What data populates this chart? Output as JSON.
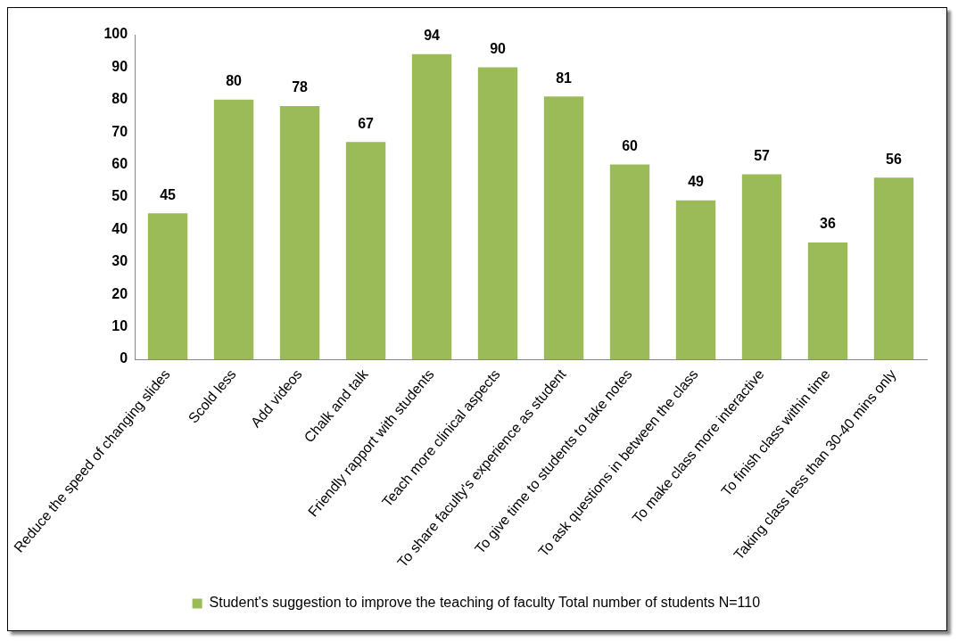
{
  "chart_data": {
    "type": "bar",
    "categories": [
      "Reduce the speed of changing slides",
      "Scold less",
      "Add videos",
      "Chalk and talk",
      "Friendly rapport with students",
      "Teach more clinical aspects",
      "To share faculty's experience as student",
      "To give time to students to take notes",
      "To ask questions in between the class",
      "To make class more interactive",
      "To finish class within time",
      "Taking class less than 30-40 mins only"
    ],
    "series": [
      {
        "name": "Student's suggestion to improve the teaching of faculty Total number of students N=110",
        "color": "#9bbb59",
        "values": [
          45,
          80,
          78,
          67,
          94,
          90,
          81,
          60,
          49,
          57,
          36,
          56
        ]
      }
    ],
    "ylim": [
      0,
      100
    ],
    "yticks": [
      0,
      10,
      20,
      30,
      40,
      50,
      60,
      70,
      80,
      90,
      100
    ],
    "grid": false,
    "legend": "bottom",
    "data_labels": true
  }
}
